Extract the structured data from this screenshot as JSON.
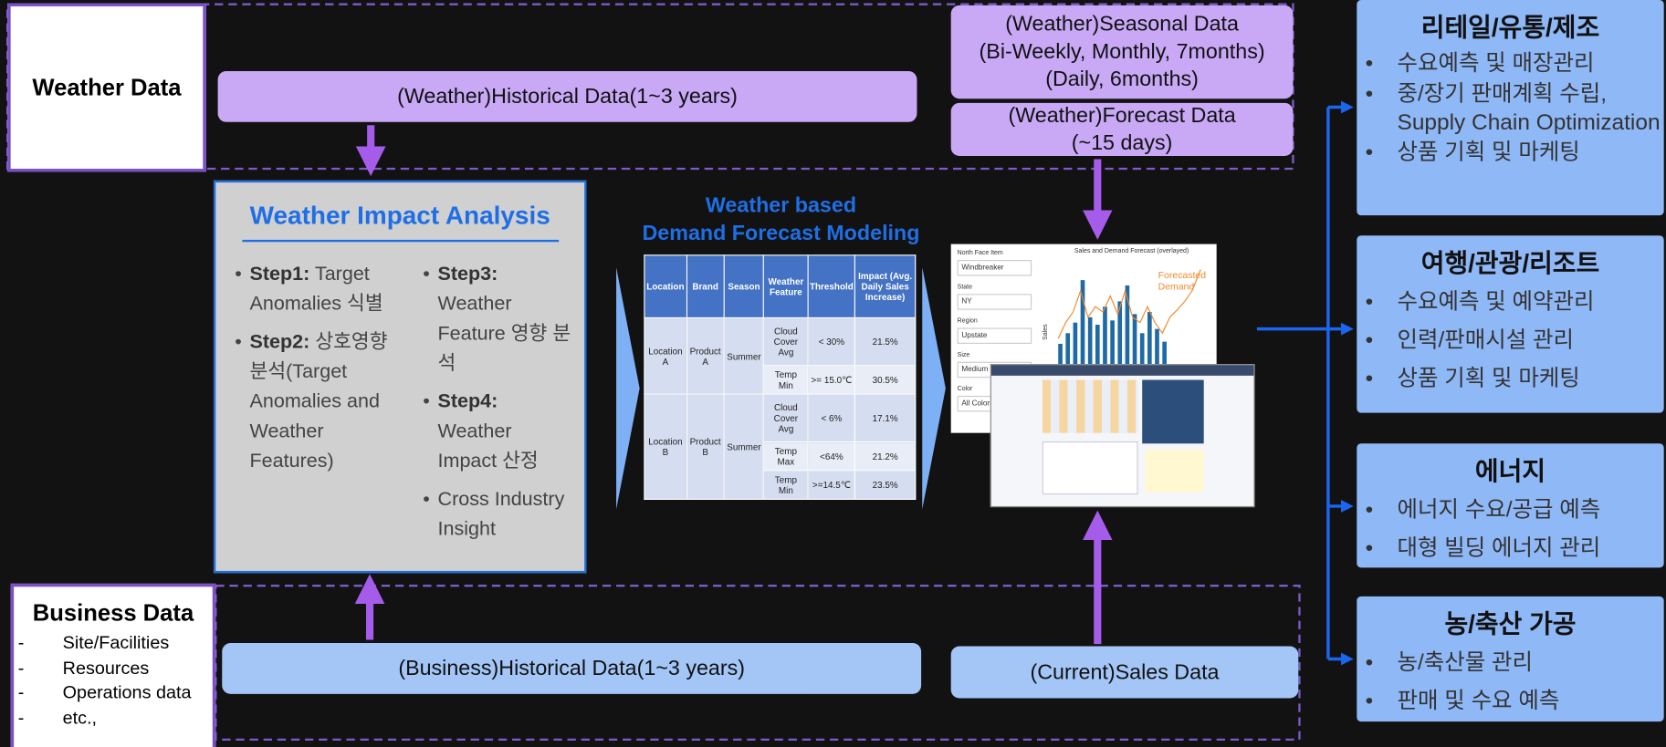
{
  "weather_data": {
    "title": "Weather Data",
    "historical": "(Weather)Historical Data(1~3 years)",
    "seasonal": [
      "(Weather)Seasonal Data",
      "(Bi-Weekly, Monthly, 7months)",
      "(Daily, 6months)"
    ],
    "forecast": [
      "(Weather)Forecast Data",
      "(~15 days)"
    ]
  },
  "analysis": {
    "title": "Weather Impact Analysis",
    "steps": [
      {
        "label": "Step1:",
        "text": "Target Anomalies 식별"
      },
      {
        "label": "Step2:",
        "text": "상호영향 분석(Target Anomalies and Weather Features)"
      },
      {
        "label": "Step3:",
        "text": "Weather Feature 영향 분석"
      },
      {
        "label": "Step4:",
        "text": "Weather Impact 산정"
      },
      {
        "text": "Cross Industry Insight"
      }
    ]
  },
  "modeling": {
    "title": [
      "Weather based",
      "Demand Forecast Modeling"
    ],
    "table": {
      "header": [
        "Location",
        "Brand",
        "Season",
        "Weather Feature",
        "Threshold",
        "Impact (Avg. Daily Sales Increase)"
      ],
      "groups": [
        {
          "location": "Location A",
          "brand": "Product A",
          "season": "Summer",
          "rows": [
            [
              "Cloud Cover Avg",
              "< 30%",
              "21.5%"
            ],
            [
              "Temp Min",
              ">= 15.0℃",
              "30.5%"
            ]
          ]
        },
        {
          "location": "Location B",
          "brand": "Product B",
          "season": "Summer",
          "rows": [
            [
              "Cloud Cover Avg",
              "< 6%",
              "17.1%"
            ],
            [
              "Temp Max",
              "<64%",
              "21.2%"
            ],
            [
              "Temp Min",
              ">=14.5℃",
              "23.5%"
            ]
          ]
        }
      ]
    }
  },
  "dashboard": {
    "filters": [
      [
        "North Face Item",
        "Windbreaker"
      ],
      [
        "State",
        "NY"
      ],
      [
        "Region",
        "Upstate"
      ],
      [
        "Size",
        "Medium"
      ],
      [
        "Color",
        "All Colors"
      ]
    ],
    "chart_title": "Sales and Demand Forecast (overlayed)",
    "legend": "Forecasted Demand",
    "axis_label": "Sales"
  },
  "business_data": {
    "title": "Business Data",
    "items": [
      "Site/Facilities",
      "Resources",
      "Operations data",
      "etc.,"
    ],
    "historical": "(Business)Historical Data(1~3 years)",
    "sales": "(Current)Sales Data"
  },
  "industries": [
    {
      "title": "리테일/유통/제조",
      "items": [
        "수요예측 및 매장관리",
        "중/장기 판매계획 수립, Supply Chain Optimization",
        "상품 기획 및 마케팅"
      ]
    },
    {
      "title": "여행/관광/리조트",
      "items": [
        "수요예측 및 예약관리",
        "인력/판매시설 관리",
        "상품 기획 및 마케팅"
      ]
    },
    {
      "title": "에너지",
      "items": [
        "에너지 수요/공급 예측",
        "대형 빌딩 에너지 관리"
      ]
    },
    {
      "title": "농/축산 가공",
      "items": [
        "농/축산물 관리",
        "판매 및 수요 예측"
      ]
    }
  ]
}
